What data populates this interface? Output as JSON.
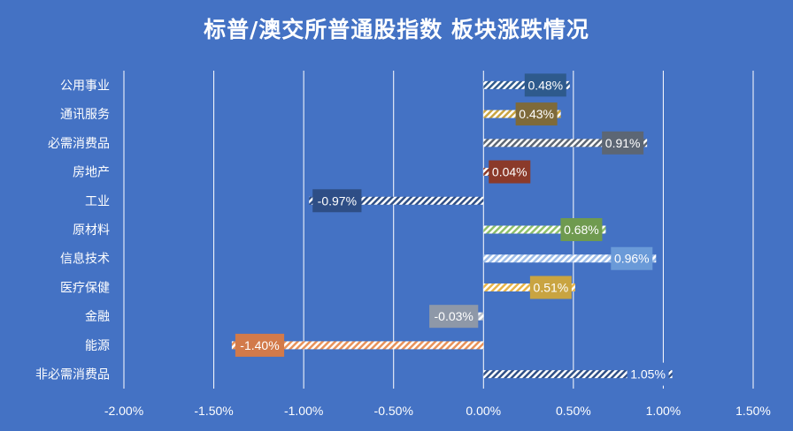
{
  "chart_data": {
    "type": "bar",
    "orientation": "horizontal",
    "title": "标普/澳交所普通股指数 板块涨跌情况",
    "categories": [
      "公用事业",
      "通讯服务",
      "必需消费品",
      "房地产",
      "工业",
      "原材料",
      "信息技术",
      "医疗保健",
      "金融",
      "能源",
      "非必需消费品"
    ],
    "values": [
      0.48,
      0.43,
      0.91,
      0.04,
      -0.97,
      0.68,
      0.96,
      0.51,
      -0.03,
      -1.4,
      1.05
    ],
    "data_labels": [
      "0.48%",
      "0.43%",
      "0.91%",
      "0.04%",
      "-0.97%",
      "0.68%",
      "0.96%",
      "0.51%",
      "-0.03%",
      "-1.40%",
      "1.05%"
    ],
    "label_box_colors": [
      "#2E5A8C",
      "#7E6A3A",
      "#5C6674",
      "#8B3A2A",
      "#2E4E86",
      "#6F9A4F",
      "#6A9AD8",
      "#C9A441",
      "#8E98A8",
      "#D27A4A",
      "#4472C4"
    ],
    "bar_colors": [
      "#2E5A8C",
      "#C9A441",
      "#5C6674",
      "#8B3A2A",
      "#FFFFFF",
      "#8FC06C",
      "#9CBCE8",
      "#E8B449",
      "#B8C0CC",
      "#E8925A",
      "#FFFFFF"
    ],
    "xlim": [
      -2.0,
      1.5
    ],
    "x_ticks": [
      -2.0,
      -1.5,
      -1.0,
      -0.5,
      0.0,
      0.5,
      1.0,
      1.5
    ],
    "x_tick_labels": [
      "-2.00%",
      "-1.50%",
      "-1.00%",
      "-0.50%",
      "0.00%",
      "0.50%",
      "1.00%",
      "1.50%"
    ],
    "grid": "vertical",
    "xlabel": "",
    "ylabel": ""
  }
}
